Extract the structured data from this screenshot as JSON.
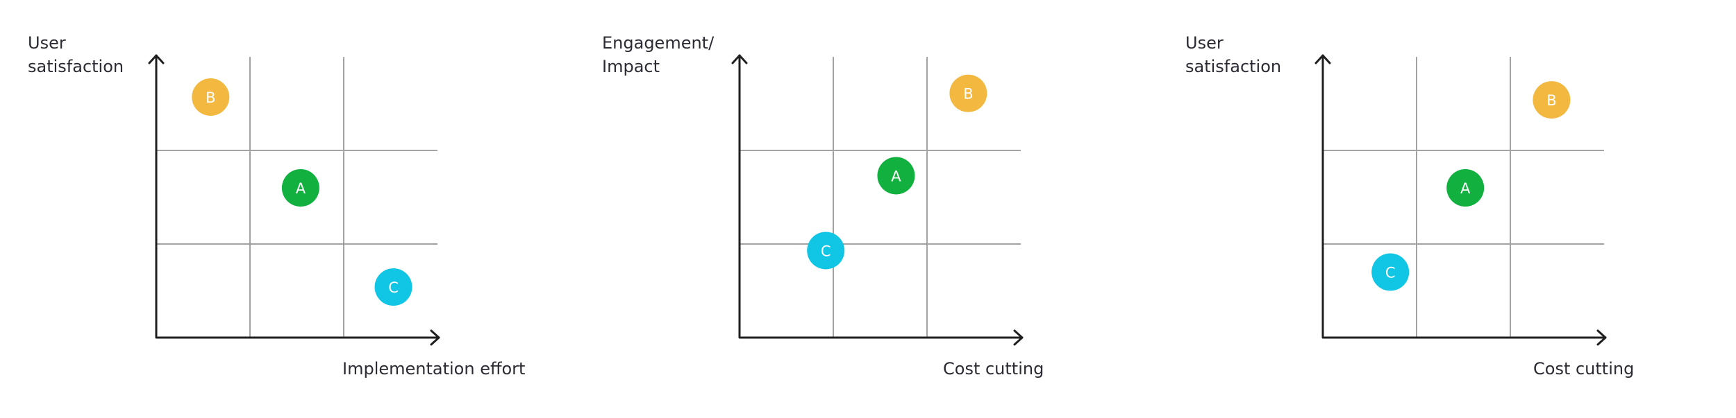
{
  "chart_data": [
    {
      "type": "scatter",
      "ylabel_lines": [
        "User",
        "satisfaction"
      ],
      "xlabel": "Implementation effort",
      "xlim": [
        0,
        3
      ],
      "ylim": [
        0,
        3
      ],
      "grid": "3x3",
      "points": [
        {
          "label": "B",
          "x": 0.58,
          "y": 2.57,
          "color": "#f2b840"
        },
        {
          "label": "A",
          "x": 1.54,
          "y": 1.6,
          "color": "#12b03f"
        },
        {
          "label": "C",
          "x": 2.53,
          "y": 0.54,
          "color": "#10c6e4"
        }
      ]
    },
    {
      "type": "scatter",
      "ylabel_lines": [
        "Engagement/",
        "Impact"
      ],
      "xlabel": "Cost cutting",
      "xlim": [
        0,
        3
      ],
      "ylim": [
        0,
        3
      ],
      "grid": "3x3",
      "points": [
        {
          "label": "B",
          "x": 2.44,
          "y": 2.61,
          "color": "#f2b840"
        },
        {
          "label": "A",
          "x": 1.67,
          "y": 1.73,
          "color": "#12b03f"
        },
        {
          "label": "C",
          "x": 0.92,
          "y": 0.93,
          "color": "#10c6e4"
        }
      ]
    },
    {
      "type": "scatter",
      "ylabel_lines": [
        "User",
        "satisfaction"
      ],
      "xlabel": "Cost cutting",
      "xlim": [
        0,
        3
      ],
      "ylim": [
        0,
        3
      ],
      "grid": "3x3",
      "points": [
        {
          "label": "B",
          "x": 2.44,
          "y": 2.54,
          "color": "#f2b840"
        },
        {
          "label": "A",
          "x": 1.52,
          "y": 1.6,
          "color": "#12b03f"
        },
        {
          "label": "C",
          "x": 0.72,
          "y": 0.7,
          "color": "#10c6e4"
        }
      ]
    }
  ]
}
